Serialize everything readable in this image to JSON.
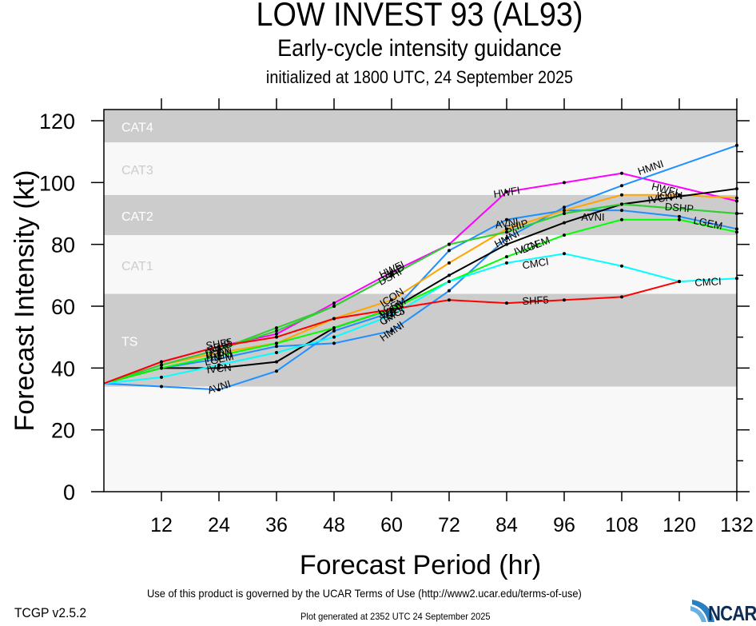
{
  "header": {
    "title": "LOW INVEST 93 (AL93)",
    "subtitle": "Early-cycle intensity guidance",
    "init_line": "initialized at 1800 UTC, 24 September 2025"
  },
  "footer": {
    "terms": "Use of this product is governed by the UCAR Terms of Use (http://www2.ucar.edu/terms-of-use)",
    "version": "TCGP v2.5.2",
    "generated": "Plot generated at 2352 UTC   24 September 2025",
    "logo_text": "NCAR"
  },
  "chart_data": {
    "type": "line",
    "title": "LOW INVEST 93 (AL93)",
    "subtitle": "Early-cycle intensity guidance",
    "xlabel": "Forecast Period (hr)",
    "ylabel": "Forecast Intensity (kt)",
    "xlim": [
      0,
      132
    ],
    "ylim": [
      0,
      124
    ],
    "xticks": [
      12,
      24,
      36,
      48,
      60,
      72,
      84,
      96,
      108,
      120,
      132
    ],
    "yticks": [
      0,
      20,
      40,
      60,
      80,
      100,
      120
    ],
    "legend": "inline-labels",
    "bands": [
      {
        "label": "TS",
        "from": 34,
        "to": 64,
        "fill": "#cccccc",
        "label_color": "#ffffff"
      },
      {
        "label": "CAT1",
        "from": 64,
        "to": 83,
        "fill": "#f8f8f8",
        "label_color": "#cccccc"
      },
      {
        "label": "CAT2",
        "from": 83,
        "to": 96,
        "fill": "#cccccc",
        "label_color": "#ffffff"
      },
      {
        "label": "CAT3",
        "from": 96,
        "to": 113,
        "fill": "#f8f8f8",
        "label_color": "#cccccc"
      },
      {
        "label": "CAT4",
        "from": 113,
        "to": 137,
        "fill": "#cccccc",
        "label_color": "#ffffff"
      }
    ],
    "series": [
      {
        "name": "HWFI",
        "color": "#ff00ff",
        "x": [
          0,
          12,
          24,
          36,
          48,
          60,
          72,
          84,
          96,
          108,
          132
        ],
        "values": [
          35,
          42,
          47,
          51,
          61,
          71,
          80,
          97,
          100,
          103,
          94
        ],
        "labels": [
          {
            "x": 60,
            "y": 72
          },
          {
            "x": 84,
            "y": 97
          },
          {
            "x": 117,
            "y": 98
          }
        ]
      },
      {
        "name": "HMNI",
        "color": "#1e90ff",
        "x": [
          0,
          12,
          24,
          36,
          48,
          60,
          72,
          84,
          96,
          108,
          132
        ],
        "values": [
          35,
          40,
          43,
          47,
          48,
          52,
          65,
          82,
          92,
          99,
          112
        ],
        "labels": [
          {
            "x": 24,
            "y": 44
          },
          {
            "x": 60,
            "y": 52
          },
          {
            "x": 84,
            "y": 82
          },
          {
            "x": 114,
            "y": 105
          }
        ]
      },
      {
        "name": "AVNI",
        "color": "#1e90ff",
        "x": [
          0,
          12,
          24,
          36,
          48,
          60,
          72,
          84,
          96,
          108,
          120,
          132
        ],
        "values": [
          35,
          34,
          33,
          39,
          52,
          58,
          78,
          88,
          91,
          91,
          89,
          85
        ],
        "labels": [
          {
            "x": 24,
            "y": 34
          },
          {
            "x": 60,
            "y": 58
          },
          {
            "x": 84,
            "y": 87
          },
          {
            "x": 102,
            "y": 89
          }
        ]
      },
      {
        "name": "ICON",
        "color": "#ffa500",
        "x": [
          0,
          12,
          24,
          36,
          48,
          60,
          72,
          84,
          96,
          108,
          120,
          132
        ],
        "values": [
          35,
          41,
          45,
          48,
          56,
          62,
          74,
          85,
          91,
          96,
          96,
          95
        ],
        "labels": [
          {
            "x": 24,
            "y": 45
          },
          {
            "x": 60,
            "y": 63
          },
          {
            "x": 118,
            "y": 96
          }
        ]
      },
      {
        "name": "IVCN",
        "color": "#000000",
        "x": [
          0,
          12,
          24,
          36,
          48,
          60,
          72,
          84,
          96,
          108,
          132
        ],
        "values": [
          35,
          40,
          40,
          42,
          53,
          59,
          70,
          80,
          87,
          93,
          98
        ],
        "labels": [
          {
            "x": 24,
            "y": 40
          },
          {
            "x": 60,
            "y": 59
          },
          {
            "x": 88,
            "y": 79
          },
          {
            "x": 116,
            "y": 95
          }
        ]
      },
      {
        "name": "SHIP",
        "color": "#32cd32",
        "x": [
          0,
          12,
          24,
          36,
          48,
          60,
          72,
          84,
          96,
          108,
          132
        ],
        "values": [
          35,
          41,
          46,
          53,
          60,
          70,
          80,
          84,
          90,
          93,
          90
        ],
        "labels": [
          {
            "x": 24,
            "y": 47
          },
          {
            "x": 60,
            "y": 71
          },
          {
            "x": 86,
            "y": 86
          }
        ]
      },
      {
        "name": "DSHP",
        "color": "#32cd32",
        "x": [
          0,
          12,
          24,
          36,
          48,
          60,
          72,
          84,
          96,
          108,
          132
        ],
        "values": [
          35,
          41,
          46,
          52,
          60,
          70,
          80,
          84,
          90,
          93,
          90
        ],
        "labels": [
          {
            "x": 24,
            "y": 46
          },
          {
            "x": 60,
            "y": 70
          },
          {
            "x": 120,
            "y": 92
          }
        ]
      },
      {
        "name": "LGEM",
        "color": "#00ff00",
        "x": [
          0,
          12,
          24,
          36,
          48,
          60,
          72,
          84,
          96,
          108,
          120,
          132
        ],
        "values": [
          35,
          40,
          44,
          48,
          53,
          59,
          68,
          76,
          83,
          88,
          88,
          84
        ],
        "labels": [
          {
            "x": 24,
            "y": 43
          },
          {
            "x": 60,
            "y": 60
          },
          {
            "x": 90,
            "y": 80
          },
          {
            "x": 126,
            "y": 87
          }
        ]
      },
      {
        "name": "CMCI",
        "color": "#00ffff",
        "x": [
          0,
          12,
          24,
          36,
          48,
          60,
          72,
          84,
          96,
          108,
          120,
          132
        ],
        "values": [
          35,
          37,
          41,
          45,
          50,
          57,
          68,
          74,
          77,
          73,
          68,
          69
        ],
        "labels": [
          {
            "x": 60,
            "y": 57
          },
          {
            "x": 90,
            "y": 74
          },
          {
            "x": 126,
            "y": 68
          }
        ]
      },
      {
        "name": "SHF5",
        "color": "#ff0000",
        "x": [
          0,
          12,
          24,
          36,
          48,
          60,
          72,
          84,
          96,
          108,
          120
        ],
        "values": [
          35,
          42,
          47,
          50,
          56,
          59,
          62,
          61,
          62,
          63,
          68
        ],
        "labels": [
          {
            "x": 24,
            "y": 48
          },
          {
            "x": 60,
            "y": 58
          },
          {
            "x": 90,
            "y": 62
          }
        ]
      }
    ]
  }
}
